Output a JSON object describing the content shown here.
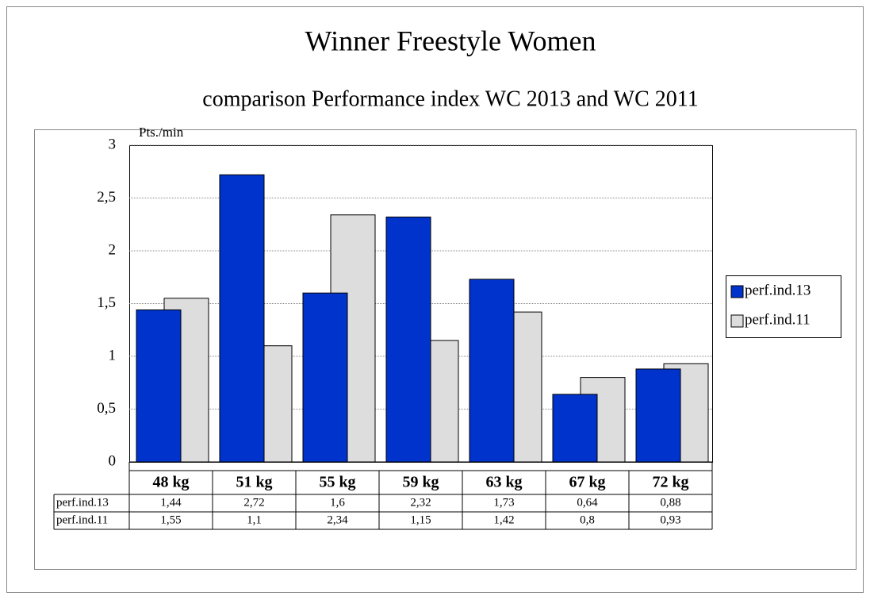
{
  "chart_data": {
    "type": "bar",
    "title": "Winner  Freestyle Women",
    "subtitle": "comparison Performance index WC 2013 and WC 2011",
    "y_label": "Pts./min",
    "categories": [
      "48 kg",
      "51 kg",
      "55 kg",
      "59 kg",
      "63 kg",
      "67 kg",
      "72 kg"
    ],
    "series": [
      {
        "name": "perf.ind.13",
        "color": "#0033cc",
        "values": [
          1.44,
          2.72,
          1.6,
          2.32,
          1.73,
          0.64,
          0.88
        ],
        "value_labels": [
          "1,44",
          "2,72",
          "1,6",
          "2,32",
          "1,73",
          "0,64",
          "0,88"
        ]
      },
      {
        "name": "perf.ind.11",
        "color": "#dddddd",
        "values": [
          1.55,
          1.1,
          2.34,
          1.15,
          1.42,
          0.8,
          0.93
        ],
        "value_labels": [
          "1,55",
          "1,1",
          "2,34",
          "1,15",
          "1,42",
          "0,8",
          "0,93"
        ]
      }
    ],
    "ylim": [
      0,
      3
    ],
    "yticks": [
      0,
      {
        "value": 0.5,
        "label": "0,5"
      },
      1,
      {
        "value": 1.5,
        "label": "1,5"
      },
      2,
      {
        "value": 2.5,
        "label": "2,5"
      },
      3
    ],
    "grid": true,
    "legend": "right"
  }
}
